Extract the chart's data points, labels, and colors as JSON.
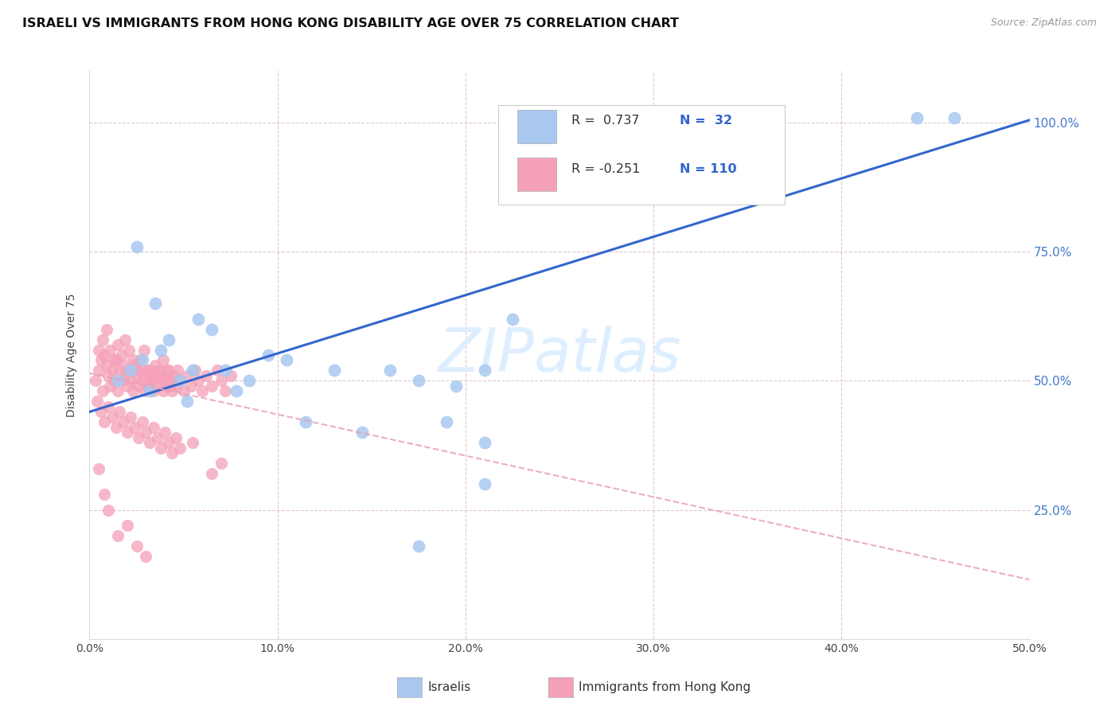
{
  "title": "ISRAELI VS IMMIGRANTS FROM HONG KONG DISABILITY AGE OVER 75 CORRELATION CHART",
  "source": "Source: ZipAtlas.com",
  "ylabel": "Disability Age Over 75",
  "xlim": [
    0.0,
    0.5
  ],
  "ylim": [
    0.0,
    1.1
  ],
  "x_ticks": [
    0.0,
    0.1,
    0.2,
    0.3,
    0.4,
    0.5
  ],
  "x_tick_labels": [
    "0.0%",
    "10.0%",
    "20.0%",
    "30.0%",
    "40.0%",
    "50.0%"
  ],
  "y_ticks": [
    0.0,
    0.25,
    0.5,
    0.75,
    1.0
  ],
  "y_tick_labels": [
    "",
    "25.0%",
    "50.0%",
    "75.0%",
    "100.0%"
  ],
  "israeli_color": "#a8c8f0",
  "hk_color": "#f4a0b8",
  "trend_israeli_color": "#3366cc",
  "trend_hk_color": "#e8a0b8",
  "watermark_text": "ZIPatlas",
  "watermark_color": "#ddeeff",
  "bg_color": "#ffffff",
  "grid_color": "#ddc0cc",
  "title_fontsize": 11.5,
  "axis_label_fontsize": 10,
  "tick_fontsize": 10,
  "right_tick_color": "#4477cc",
  "legend_text_color": "#333333",
  "legend_n_color": "#3366cc",
  "source_color": "#999999",
  "israeli_scatter_x": [
    0.015,
    0.022,
    0.028,
    0.032,
    0.038,
    0.042,
    0.048,
    0.052,
    0.058,
    0.065,
    0.072,
    0.078,
    0.085,
    0.095,
    0.105,
    0.115,
    0.13,
    0.145,
    0.16,
    0.175,
    0.195,
    0.21,
    0.225,
    0.025,
    0.035,
    0.055,
    0.19,
    0.21,
    0.44,
    0.46,
    0.21,
    0.175
  ],
  "israeli_scatter_y": [
    0.5,
    0.52,
    0.54,
    0.48,
    0.56,
    0.58,
    0.5,
    0.46,
    0.62,
    0.6,
    0.52,
    0.48,
    0.5,
    0.55,
    0.54,
    0.42,
    0.52,
    0.4,
    0.52,
    0.5,
    0.49,
    0.52,
    0.62,
    0.76,
    0.65,
    0.52,
    0.42,
    0.38,
    1.01,
    1.01,
    0.3,
    0.18
  ],
  "hk_scatter_x": [
    0.003,
    0.005,
    0.006,
    0.007,
    0.008,
    0.009,
    0.01,
    0.011,
    0.012,
    0.013,
    0.014,
    0.015,
    0.016,
    0.017,
    0.018,
    0.019,
    0.02,
    0.021,
    0.022,
    0.023,
    0.024,
    0.025,
    0.026,
    0.027,
    0.028,
    0.029,
    0.03,
    0.031,
    0.032,
    0.033,
    0.034,
    0.035,
    0.036,
    0.037,
    0.038,
    0.039,
    0.04,
    0.041,
    0.042,
    0.043,
    0.044,
    0.045,
    0.046,
    0.047,
    0.048,
    0.05,
    0.052,
    0.054,
    0.056,
    0.058,
    0.06,
    0.062,
    0.065,
    0.068,
    0.07,
    0.072,
    0.075,
    0.004,
    0.006,
    0.008,
    0.01,
    0.012,
    0.014,
    0.016,
    0.018,
    0.02,
    0.022,
    0.024,
    0.026,
    0.028,
    0.03,
    0.032,
    0.034,
    0.036,
    0.038,
    0.04,
    0.042,
    0.044,
    0.046,
    0.048,
    0.005,
    0.007,
    0.009,
    0.011,
    0.013,
    0.015,
    0.017,
    0.019,
    0.021,
    0.023,
    0.025,
    0.027,
    0.029,
    0.031,
    0.033,
    0.035,
    0.037,
    0.039,
    0.041,
    0.043,
    0.005,
    0.008,
    0.01,
    0.015,
    0.02,
    0.025,
    0.03,
    0.055,
    0.065,
    0.07
  ],
  "hk_scatter_y": [
    0.5,
    0.52,
    0.54,
    0.48,
    0.55,
    0.53,
    0.51,
    0.49,
    0.52,
    0.5,
    0.54,
    0.48,
    0.52,
    0.5,
    0.53,
    0.51,
    0.49,
    0.52,
    0.5,
    0.48,
    0.53,
    0.51,
    0.49,
    0.52,
    0.5,
    0.48,
    0.51,
    0.49,
    0.52,
    0.5,
    0.48,
    0.51,
    0.49,
    0.52,
    0.5,
    0.48,
    0.51,
    0.49,
    0.52,
    0.5,
    0.48,
    0.51,
    0.49,
    0.52,
    0.5,
    0.48,
    0.51,
    0.49,
    0.52,
    0.5,
    0.48,
    0.51,
    0.49,
    0.52,
    0.5,
    0.48,
    0.51,
    0.46,
    0.44,
    0.42,
    0.45,
    0.43,
    0.41,
    0.44,
    0.42,
    0.4,
    0.43,
    0.41,
    0.39,
    0.42,
    0.4,
    0.38,
    0.41,
    0.39,
    0.37,
    0.4,
    0.38,
    0.36,
    0.39,
    0.37,
    0.56,
    0.58,
    0.6,
    0.56,
    0.54,
    0.57,
    0.55,
    0.58,
    0.56,
    0.54,
    0.52,
    0.54,
    0.56,
    0.52,
    0.5,
    0.53,
    0.51,
    0.54,
    0.52,
    0.5,
    0.33,
    0.28,
    0.25,
    0.2,
    0.22,
    0.18,
    0.16,
    0.38,
    0.32,
    0.34
  ],
  "israeli_trend_x0": 0.0,
  "israeli_trend_y0": 0.44,
  "israeli_trend_x1": 0.5,
  "israeli_trend_y1": 1.005,
  "hk_trend_x0": 0.0,
  "hk_trend_y0": 0.515,
  "hk_trend_x1": 0.5,
  "hk_trend_y1": 0.115
}
